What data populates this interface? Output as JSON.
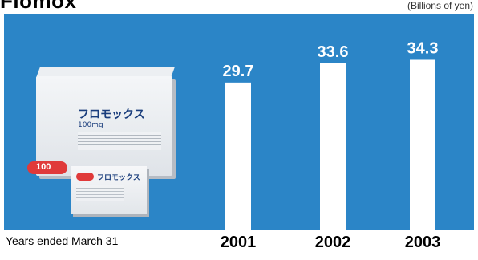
{
  "header": {
    "title_fragment": "Flomox",
    "unit_label": "(Billions of yen)"
  },
  "product_image": {
    "brand_text": "フロモックス",
    "dose_text": "100mg",
    "badge_text": "100",
    "colors": {
      "badge": "#e03a3a",
      "brand_text": "#1a3d7c"
    }
  },
  "footer": {
    "x_note": "Years ended March 31"
  },
  "colors": {
    "panel_background": "#2b85c7",
    "bars": "#ffffff",
    "bar_labels": "#ffffff",
    "tick_labels": "#000000"
  },
  "chart_data": {
    "type": "bar",
    "categories": [
      "2001",
      "2002",
      "2003"
    ],
    "values": [
      29.7,
      33.6,
      34.3
    ],
    "data_labels": [
      "29.7",
      "33.6",
      "34.3"
    ],
    "title": "",
    "xlabel": "Years ended March 31",
    "ylabel": "(Billions of yen)",
    "ylim": [
      0,
      42
    ],
    "grid": false,
    "legend": "none"
  }
}
